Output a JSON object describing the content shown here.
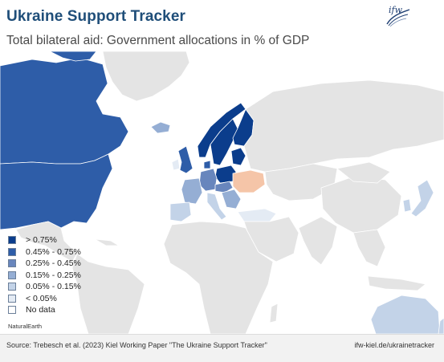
{
  "header": {
    "title": "Ukraine Support Tracker",
    "subtitle": "Total bilateral aid: Government allocations in % of GDP",
    "logo_text": "ifw"
  },
  "colors": {
    "gt_075": "#0b3d8c",
    "r_045_075": "#2e5da8",
    "r_025_045": "#6886bd",
    "r_015_025": "#95aed4",
    "r_005_015": "#c3d3e8",
    "lt_005": "#e4ebf4",
    "no_data": "#e4e4e4",
    "ukraine": "#f5c5a8",
    "border": "#ffffff",
    "ocean": "#ffffff"
  },
  "legend": [
    {
      "label": "> 0.75%",
      "color_key": "gt_075"
    },
    {
      "label": "0.45% - 0.75%",
      "color_key": "r_045_075"
    },
    {
      "label": "0.25% - 0.45%",
      "color_key": "r_025_045"
    },
    {
      "label": "0.15% - 0.25%",
      "color_key": "r_015_025"
    },
    {
      "label": "0.05% - 0.15%",
      "color_key": "r_005_015"
    },
    {
      "label": "< 0.05%",
      "color_key": "lt_005"
    },
    {
      "label": "No data",
      "color_key": "no_data"
    }
  ],
  "map": {
    "attribution": "NaturalEarth",
    "regions": [
      {
        "name": "Canada",
        "category": "r_045_075"
      },
      {
        "name": "United States",
        "category": "r_045_075"
      },
      {
        "name": "Greenland",
        "category": "no_data"
      },
      {
        "name": "Iceland",
        "category": "r_015_025"
      },
      {
        "name": "United Kingdom",
        "category": "r_045_075"
      },
      {
        "name": "Norway",
        "category": "gt_075"
      },
      {
        "name": "Sweden",
        "category": "gt_075"
      },
      {
        "name": "Finland",
        "category": "gt_075"
      },
      {
        "name": "Denmark",
        "category": "r_045_075"
      },
      {
        "name": "Baltic states",
        "category": "gt_075"
      },
      {
        "name": "Poland",
        "category": "gt_075"
      },
      {
        "name": "Germany",
        "category": "r_025_045"
      },
      {
        "name": "France",
        "category": "r_015_025"
      },
      {
        "name": "Spain",
        "category": "r_005_015"
      },
      {
        "name": "Italy",
        "category": "r_005_015"
      },
      {
        "name": "Ukraine",
        "category": "ukraine"
      },
      {
        "name": "Russia",
        "category": "no_data"
      },
      {
        "name": "China",
        "category": "no_data"
      },
      {
        "name": "Japan",
        "category": "r_005_015"
      },
      {
        "name": "South Korea",
        "category": "r_005_015"
      },
      {
        "name": "Australia",
        "category": "r_005_015"
      },
      {
        "name": "Africa",
        "category": "no_data"
      },
      {
        "name": "Turkey",
        "category": "lt_005"
      }
    ]
  },
  "footer": {
    "source": "Source: Trebesch et al. (2023) Kiel Working Paper \"The Ukraine Support Tracker\"",
    "link": "ifw-kiel.de/ukrainetracker"
  }
}
